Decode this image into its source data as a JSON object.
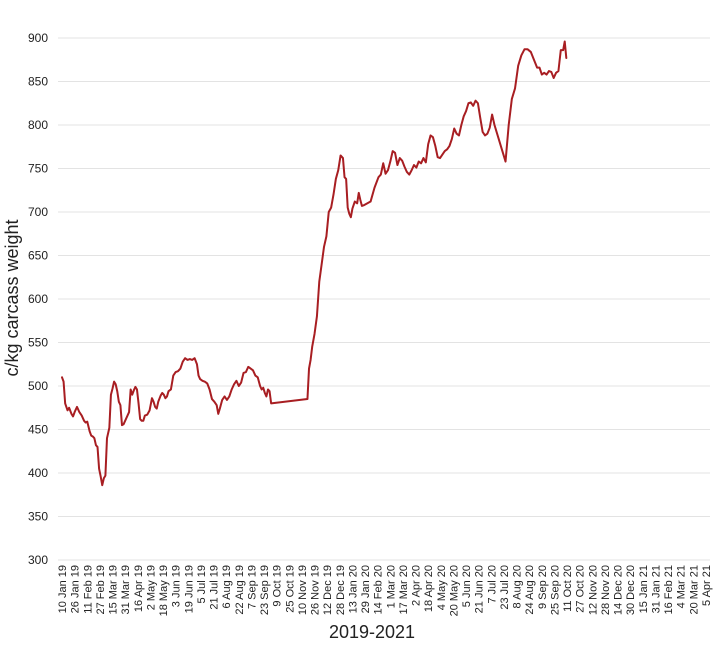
{
  "chart_data": {
    "type": "line",
    "xlabel": "2019-2021",
    "ylabel": "c/kg carcass weight",
    "ylim": [
      300,
      900
    ],
    "yticks": [
      300,
      350,
      400,
      450,
      500,
      550,
      600,
      650,
      700,
      750,
      800,
      850,
      900
    ],
    "grid": "horizontal",
    "line_color": "#a81e22",
    "x_tick_labels": [
      "10 Jan 19",
      "26 Jan 19",
      "11 Feb 19",
      "27 Feb 19",
      "15 Mar 19",
      "31 Mar 19",
      "16 Apr 19",
      "2 May 19",
      "18 May 19",
      "3 Jun 19",
      "19 Jun 19",
      "5 Jul 19",
      "21 Jul 19",
      "6 Aug 19",
      "22 Aug 19",
      "7 Sep 19",
      "23 Sep 19",
      "9 Oct 19",
      "25 Oct 19",
      "10 Nov 19",
      "26 Nov 19",
      "12 Dec 19",
      "28 Dec 19",
      "13 Jan 20",
      "29 Jan 20",
      "14 Feb 20",
      "1 Mar 20",
      "17 Mar 20",
      "2 Apr 20",
      "18 Apr 20",
      "4 May 20",
      "20 May 20",
      "5 Jun 20",
      "21 Jun 20",
      "7 Jul 20",
      "23 Jul 20",
      "8 Aug 20",
      "24 Aug 20",
      "9 Sep 20",
      "25 Sep 20",
      "11 Oct 20",
      "27 Oct 20",
      "12 Nov 20",
      "28 Nov 20",
      "14 Dec 20",
      "30 Dec 20",
      "15 Jan 21",
      "31 Jan 21",
      "16 Feb 21",
      "4 Mar 21",
      "20 Mar 21",
      "5 Apr 21"
    ],
    "series": [
      {
        "points": [
          [
            "10 Jan 19",
            510
          ],
          [
            "12 Jan 19",
            505
          ],
          [
            "14 Jan 19",
            480
          ],
          [
            "17 Jan 19",
            472
          ],
          [
            "19 Jan 19",
            475
          ],
          [
            "22 Jan 19",
            468
          ],
          [
            "24 Jan 19",
            465
          ],
          [
            "26 Jan 19",
            470
          ],
          [
            "29 Jan 19",
            476
          ],
          [
            "1 Feb 19",
            470
          ],
          [
            "4 Feb 19",
            466
          ],
          [
            "7 Feb 19",
            460
          ],
          [
            "9 Feb 19",
            458
          ],
          [
            "11 Feb 19",
            459
          ],
          [
            "14 Feb 19",
            448
          ],
          [
            "16 Feb 19",
            443
          ],
          [
            "18 Feb 19",
            442
          ],
          [
            "20 Feb 19",
            440
          ],
          [
            "22 Feb 19",
            432
          ],
          [
            "24 Feb 19",
            430
          ],
          [
            "26 Feb 19",
            405
          ],
          [
            "28 Feb 19",
            396
          ],
          [
            "2 Mar 19",
            386
          ],
          [
            "4 Mar 19",
            394
          ],
          [
            "6 Mar 19",
            397
          ],
          [
            "8 Mar 19",
            440
          ],
          [
            "11 Mar 19",
            452
          ],
          [
            "13 Mar 19",
            490
          ],
          [
            "15 Mar 19",
            497
          ],
          [
            "17 Mar 19",
            505
          ],
          [
            "19 Mar 19",
            502
          ],
          [
            "21 Mar 19",
            494
          ],
          [
            "23 Mar 19",
            482
          ],
          [
            "25 Mar 19",
            478
          ],
          [
            "27 Mar 19",
            455
          ],
          [
            "29 Mar 19",
            456
          ],
          [
            "31 Mar 19",
            460
          ],
          [
            "3 Apr 19",
            466
          ],
          [
            "5 Apr 19",
            470
          ],
          [
            "7 Apr 19",
            496
          ],
          [
            "9 Apr 19",
            490
          ],
          [
            "11 Apr 19",
            495
          ],
          [
            "13 Apr 19",
            499
          ],
          [
            "15 Apr 19",
            496
          ],
          [
            "17 Apr 19",
            480
          ],
          [
            "19 Apr 19",
            462
          ],
          [
            "21 Apr 19",
            460
          ],
          [
            "23 Apr 19",
            460
          ],
          [
            "25 Apr 19",
            466
          ],
          [
            "28 Apr 19",
            467
          ],
          [
            "1 May 19",
            472
          ],
          [
            "4 May 19",
            486
          ],
          [
            "6 May 19",
            482
          ],
          [
            "8 May 19",
            476
          ],
          [
            "10 May 19",
            474
          ],
          [
            "12 May 19",
            482
          ],
          [
            "15 May 19",
            489
          ],
          [
            "17 May 19",
            492
          ],
          [
            "19 May 19",
            490
          ],
          [
            "21 May 19",
            486
          ],
          [
            "23 May 19",
            488
          ],
          [
            "25 May 19",
            494
          ],
          [
            "28 May 19",
            496
          ],
          [
            "31 May 19",
            512
          ],
          [
            "3 Jun 19",
            516
          ],
          [
            "6 Jun 19",
            517
          ],
          [
            "9 Jun 19",
            520
          ],
          [
            "12 Jun 19",
            528
          ],
          [
            "15 Jun 19",
            532
          ],
          [
            "18 Jun 19",
            530
          ],
          [
            "21 Jun 19",
            531
          ],
          [
            "24 Jun 19",
            530
          ],
          [
            "27 Jun 19",
            532
          ],
          [
            "30 Jun 19",
            525
          ],
          [
            "2 Jul 19",
            512
          ],
          [
            "4 Jul 19",
            508
          ],
          [
            "7 Jul 19",
            506
          ],
          [
            "10 Jul 19",
            505
          ],
          [
            "13 Jul 19",
            503
          ],
          [
            "16 Jul 19",
            496
          ],
          [
            "19 Jul 19",
            485
          ],
          [
            "22 Jul 19",
            482
          ],
          [
            "25 Jul 19",
            478
          ],
          [
            "27 Jul 19",
            468
          ],
          [
            "29 Jul 19",
            474
          ],
          [
            "1 Aug 19",
            484
          ],
          [
            "4 Aug 19",
            488
          ],
          [
            "7 Aug 19",
            484
          ],
          [
            "10 Aug 19",
            488
          ],
          [
            "13 Aug 19",
            496
          ],
          [
            "16 Aug 19",
            502
          ],
          [
            "19 Aug 19",
            506
          ],
          [
            "22 Aug 19",
            500
          ],
          [
            "25 Aug 19",
            504
          ],
          [
            "28 Aug 19",
            515
          ],
          [
            "31 Aug 19",
            516
          ],
          [
            "3 Sep 19",
            522
          ],
          [
            "6 Sep 19",
            520
          ],
          [
            "9 Sep 19",
            518
          ],
          [
            "12 Sep 19",
            512
          ],
          [
            "15 Sep 19",
            510
          ],
          [
            "18 Sep 19",
            500
          ],
          [
            "20 Sep 19",
            496
          ],
          [
            "22 Sep 19",
            498
          ],
          [
            "24 Sep 19",
            492
          ],
          [
            "26 Sep 19",
            488
          ],
          [
            "28 Sep 19",
            496
          ],
          [
            "30 Sep 19",
            494
          ],
          [
            "2 Oct 19",
            480
          ],
          [
            "17 Nov 19",
            485
          ],
          [
            "19 Nov 19",
            520
          ],
          [
            "21 Nov 19",
            530
          ],
          [
            "23 Nov 19",
            545
          ],
          [
            "26 Nov 19",
            560
          ],
          [
            "29 Nov 19",
            580
          ],
          [
            "2 Dec 19",
            620
          ],
          [
            "5 Dec 19",
            640
          ],
          [
            "8 Dec 19",
            660
          ],
          [
            "11 Dec 19",
            672
          ],
          [
            "14 Dec 19",
            700
          ],
          [
            "17 Dec 19",
            705
          ],
          [
            "20 Dec 19",
            720
          ],
          [
            "23 Dec 19",
            738
          ],
          [
            "26 Dec 19",
            748
          ],
          [
            "29 Dec 19",
            765
          ],
          [
            "1 Jan 20",
            762
          ],
          [
            "3 Jan 20",
            740
          ],
          [
            "5 Jan 20",
            738
          ],
          [
            "7 Jan 20",
            705
          ],
          [
            "9 Jan 20",
            698
          ],
          [
            "11 Jan 20",
            694
          ],
          [
            "13 Jan 20",
            704
          ],
          [
            "16 Jan 20",
            712
          ],
          [
            "19 Jan 20",
            710
          ],
          [
            "21 Jan 20",
            722
          ],
          [
            "23 Jan 20",
            714
          ],
          [
            "25 Jan 20",
            707
          ],
          [
            "28 Jan 20",
            708
          ],
          [
            "1 Feb 20",
            710
          ],
          [
            "5 Feb 20",
            712
          ],
          [
            "10 Feb 20",
            728
          ],
          [
            "15 Feb 20",
            740
          ],
          [
            "18 Feb 20",
            743
          ],
          [
            "21 Feb 20",
            756
          ],
          [
            "24 Feb 20",
            744
          ],
          [
            "27 Feb 20",
            748
          ],
          [
            "1 Mar 20",
            758
          ],
          [
            "4 Mar 20",
            770
          ],
          [
            "7 Mar 20",
            768
          ],
          [
            "10 Mar 20",
            754
          ],
          [
            "13 Mar 20",
            762
          ],
          [
            "16 Mar 20",
            759
          ],
          [
            "19 Mar 20",
            752
          ],
          [
            "22 Mar 20",
            746
          ],
          [
            "25 Mar 20",
            743
          ],
          [
            "28 Mar 20",
            748
          ],
          [
            "31 Mar 20",
            754
          ],
          [
            "3 Apr 20",
            751
          ],
          [
            "6 Apr 20",
            758
          ],
          [
            "9 Apr 20",
            756
          ],
          [
            "12 Apr 20",
            762
          ],
          [
            "15 Apr 20",
            757
          ],
          [
            "18 Apr 20",
            778
          ],
          [
            "21 Apr 20",
            788
          ],
          [
            "24 Apr 20",
            786
          ],
          [
            "27 Apr 20",
            776
          ],
          [
            "30 Apr 20",
            763
          ],
          [
            "3 May 20",
            762
          ],
          [
            "6 May 20",
            766
          ],
          [
            "9 May 20",
            770
          ],
          [
            "12 May 20",
            772
          ],
          [
            "15 May 20",
            776
          ],
          [
            "18 May 20",
            784
          ],
          [
            "21 May 20",
            796
          ],
          [
            "24 May 20",
            790
          ],
          [
            "27 May 20",
            788
          ],
          [
            "30 May 20",
            800
          ],
          [
            "2 Jun 20",
            810
          ],
          [
            "5 Jun 20",
            816
          ],
          [
            "8 Jun 20",
            825
          ],
          [
            "11 Jun 20",
            826
          ],
          [
            "14 Jun 20",
            822
          ],
          [
            "17 Jun 20",
            828
          ],
          [
            "20 Jun 20",
            825
          ],
          [
            "23 Jun 20",
            808
          ],
          [
            "26 Jun 20",
            792
          ],
          [
            "29 Jun 20",
            788
          ],
          [
            "2 Jul 20",
            790
          ],
          [
            "5 Jul 20",
            797
          ],
          [
            "8 Jul 20",
            812
          ],
          [
            "11 Jul 20",
            800
          ],
          [
            "25 Jul 20",
            758
          ],
          [
            "29 Jul 20",
            800
          ],
          [
            "2 Aug 20",
            830
          ],
          [
            "6 Aug 20",
            842
          ],
          [
            "10 Aug 20",
            868
          ],
          [
            "14 Aug 20",
            880
          ],
          [
            "18 Aug 20",
            887
          ],
          [
            "22 Aug 20",
            887
          ],
          [
            "26 Aug 20",
            884
          ],
          [
            "30 Aug 20",
            875
          ],
          [
            "3 Sep 20",
            866
          ],
          [
            "6 Sep 20",
            866
          ],
          [
            "9 Sep 20",
            858
          ],
          [
            "12 Sep 20",
            860
          ],
          [
            "15 Sep 20",
            858
          ],
          [
            "18 Sep 20",
            862
          ],
          [
            "21 Sep 20",
            861
          ],
          [
            "24 Sep 20",
            854
          ],
          [
            "27 Sep 20",
            860
          ],
          [
            "30 Sep 20",
            862
          ],
          [
            "3 Oct 20",
            886
          ],
          [
            "6 Oct 20",
            886
          ],
          [
            "8 Oct 20",
            896
          ],
          [
            "10 Oct 20",
            877
          ]
        ]
      }
    ]
  }
}
